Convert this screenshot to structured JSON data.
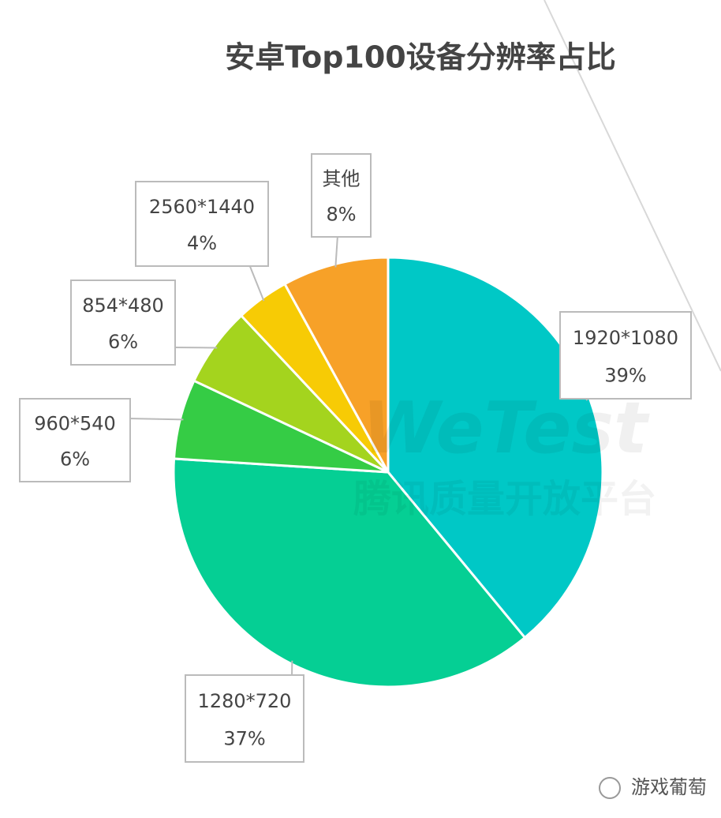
{
  "chart_data": {
    "type": "pie",
    "title": "安卓Top100设备分辨率占比",
    "categories": [
      "1920*1080",
      "1280*720",
      "960*540",
      "854*480",
      "2560*1440",
      "其他"
    ],
    "values": [
      39,
      37,
      6,
      6,
      4,
      8
    ],
    "value_labels": [
      "39%",
      "37%",
      "6%",
      "6%",
      "4%",
      "8%"
    ],
    "colors": [
      "#00c8c6",
      "#05cf94",
      "#35cc45",
      "#a4d41e",
      "#f7cb05",
      "#f7a128"
    ],
    "watermark": [
      "WeTest",
      "腾讯质量开放平台"
    ],
    "footer": "游戏葡萄"
  }
}
